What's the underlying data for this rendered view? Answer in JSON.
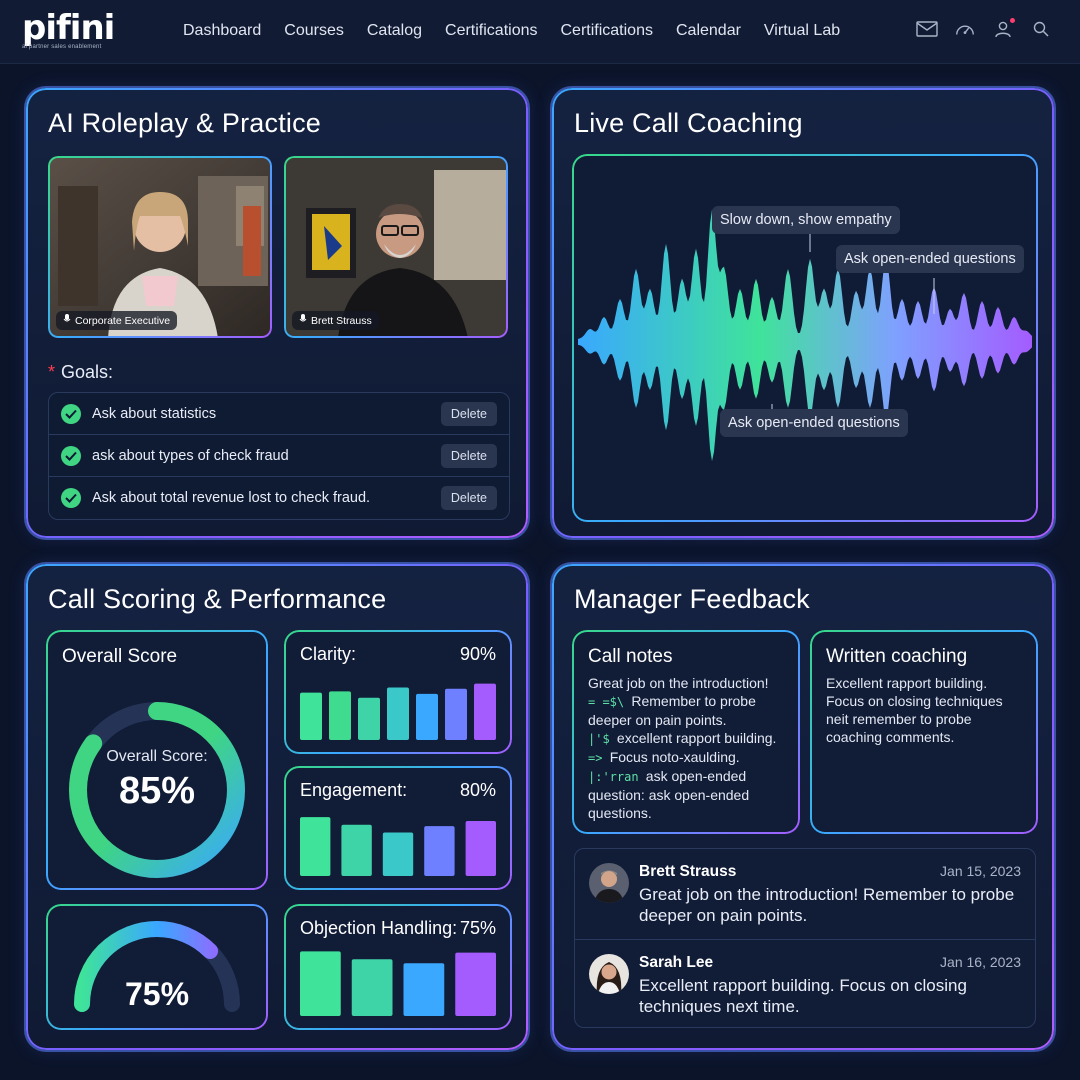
{
  "brand": {
    "logo_text": "pifini",
    "tagline": "ai partner sales enablement"
  },
  "nav": [
    "Dashboard",
    "Courses",
    "Catalog",
    "Certifications",
    "Certifications",
    "Calendar",
    "Virtual Lab"
  ],
  "top_icons": [
    "mail-icon",
    "speed-gauge-icon",
    "user-icon",
    "search-icon"
  ],
  "roleplay": {
    "title": "AI Roleplay & Practice",
    "videos": [
      {
        "label": "Corporate Executive"
      },
      {
        "label": "Brett Strauss"
      }
    ],
    "goals_label": "Goals:",
    "goals": [
      {
        "text": "Ask about statistics",
        "action": "Delete"
      },
      {
        "text": "ask about types of check fraud",
        "action": "Delete"
      },
      {
        "text": "Ask about total revenue lost to check fraud.",
        "action": "Delete"
      }
    ]
  },
  "live": {
    "title": "Live Call Coaching",
    "tips": [
      "Slow down, show empathy",
      "Ask open-ended questions",
      "Ask open-ended questions"
    ]
  },
  "scoring": {
    "title": "Call Scoring & Performance",
    "overall": {
      "title": "Overall Score",
      "label": "Overall Score:",
      "value_text": "85%",
      "value": 85
    },
    "gauge": {
      "value_text": "75%",
      "value": 75
    },
    "metrics": [
      {
        "name": "Clarity:",
        "value_text": "90%",
        "bars": [
          0.74,
          0.76,
          0.66,
          0.82,
          0.72,
          0.8,
          0.88
        ]
      },
      {
        "name": "Engagement:",
        "value_text": "80%",
        "bars": [
          0.92,
          0.8,
          0.68,
          0.78,
          0.86
        ]
      },
      {
        "name": "Objection Handling:",
        "value_text": "75%",
        "bars": [
          0.98,
          0.86,
          0.8,
          0.96
        ]
      }
    ]
  },
  "feedback": {
    "title": "Manager Feedback",
    "call_notes": {
      "title": "Call notes",
      "lines": [
        {
          "prefix": "",
          "text": "Great job on the introduction!"
        },
        {
          "prefix": "= =$\\",
          "text": "Remember to probe"
        },
        {
          "prefix": "",
          "text": "deeper on pain points."
        },
        {
          "prefix": "|'$",
          "text": "excellent rapport building."
        },
        {
          "prefix": "=>",
          "text": "Focus noto-xaulding."
        },
        {
          "prefix": "|:'rran",
          "text": "ask open-ended"
        },
        {
          "prefix": "",
          "text": "question: ask open-ended"
        },
        {
          "prefix": "",
          "text": "questions."
        }
      ]
    },
    "written": {
      "title": "Written coaching",
      "lines": [
        "Excellent rapport building.",
        "Focus on closing techniques",
        "neit remember to probe",
        "coaching comments."
      ]
    },
    "comments": [
      {
        "name": "Brett Strauss",
        "date": "Jan 15, 2023",
        "text": "Great job on the introduction! Remember to probe deeper on pain points."
      },
      {
        "name": "Sarah Lee",
        "date": "Jan 16, 2023",
        "text": "Excellent rapport building. Focus on closing techniques next time."
      }
    ]
  },
  "colors": {
    "accent_green": "#3fd583",
    "accent_blue": "#3aa8ff",
    "accent_purple": "#a45cff",
    "notify": "#ff3d6e"
  }
}
